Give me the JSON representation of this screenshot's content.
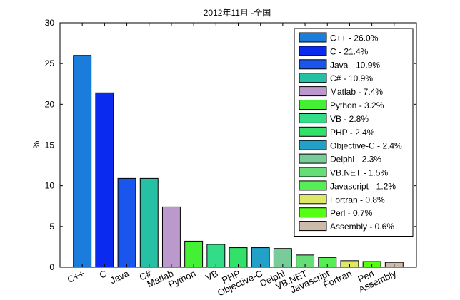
{
  "chart_data": {
    "type": "bar",
    "title": "2012年11月 -全国",
    "xlabel": "",
    "ylabel": "%",
    "ylim": [
      0,
      30
    ],
    "yticks": [
      0,
      5,
      10,
      15,
      20,
      25,
      30
    ],
    "grid": false,
    "legend_position": "top-right",
    "categories": [
      "C++",
      "C",
      "Java",
      "C#",
      "Matlab",
      "Python",
      "VB",
      "PHP",
      "Objective-C",
      "Delphi",
      "VB.NET",
      "Javascript",
      "Fortran",
      "Perl",
      "Assembly"
    ],
    "values": [
      26.0,
      21.4,
      10.9,
      10.9,
      7.4,
      3.2,
      2.8,
      2.4,
      2.4,
      2.3,
      1.5,
      1.2,
      0.8,
      0.7,
      0.6
    ],
    "colors": [
      "#1a7ddb",
      "#0a2af0",
      "#1a55ee",
      "#26c0a5",
      "#bb99cc",
      "#44f033",
      "#33dd88",
      "#33e06a",
      "#22a0c8",
      "#77cc99",
      "#66dd77",
      "#55ee55",
      "#dde866",
      "#55ff11",
      "#ccbbaa"
    ],
    "legend": [
      "C++ - 26.0%",
      "C - 21.4%",
      "Java - 10.9%",
      "C# - 10.9%",
      "Matlab - 7.4%",
      "Python - 3.2%",
      "VB - 2.8%",
      "PHP - 2.4%",
      "Objective-C - 2.4%",
      "Delphi - 2.3%",
      "VB.NET - 1.5%",
      "Javascript - 1.2%",
      "Fortran - 0.8%",
      "Perl - 0.7%",
      "Assembly - 0.6%"
    ]
  }
}
